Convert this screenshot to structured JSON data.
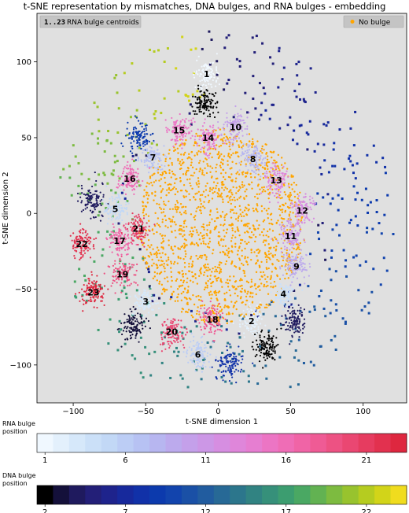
{
  "chart_data": {
    "type": "scatter",
    "title": "t-SNE representation by mismatches, DNA bulges, and RNA bulges - embedding",
    "xlabel": "t-SNE dimension 1",
    "ylabel": "t-SNE dimension 2",
    "xlim": [
      -125,
      130
    ],
    "ylim": [
      -125,
      132
    ],
    "xticks": [
      -100,
      -50,
      0,
      50,
      100
    ],
    "yticks": [
      -100,
      -50,
      0,
      50,
      100
    ],
    "grid": false,
    "plot_background": "#e0e0e0",
    "legend": {
      "placement": "top-right",
      "entries": [
        {
          "label": "No bulge",
          "color": "#ffa500"
        }
      ]
    },
    "centroid_legend": {
      "placement": "top-left",
      "symbol": "1..23",
      "label": "RNA bulge centroids"
    },
    "no_bulge_cloud": {
      "color": "#ffa500",
      "center": [
        2,
        -8
      ],
      "radius": 58
    },
    "rna_bulge_clusters": [
      {
        "label": "1",
        "position": 1,
        "x": -8,
        "y": 92
      },
      {
        "label": "2",
        "position": 2,
        "x": 23,
        "y": -71
      },
      {
        "label": "3",
        "position": 3,
        "x": -50,
        "y": -58
      },
      {
        "label": "4",
        "position": 4,
        "x": 45,
        "y": -53
      },
      {
        "label": "5",
        "position": 5,
        "x": -71,
        "y": 3
      },
      {
        "label": "6",
        "position": 6,
        "x": -14,
        "y": -93
      },
      {
        "label": "7",
        "position": 7,
        "x": -45,
        "y": 37
      },
      {
        "label": "8",
        "position": 8,
        "x": 24,
        "y": 36
      },
      {
        "label": "9",
        "position": 9,
        "x": 54,
        "y": -35
      },
      {
        "label": "10",
        "position": 10,
        "x": 12,
        "y": 57
      },
      {
        "label": "11",
        "position": 11,
        "x": 50,
        "y": -15
      },
      {
        "label": "12",
        "position": 12,
        "x": 58,
        "y": 2
      },
      {
        "label": "13",
        "position": 13,
        "x": 40,
        "y": 22
      },
      {
        "label": "14",
        "position": 14,
        "x": -7,
        "y": 50
      },
      {
        "label": "15",
        "position": 15,
        "x": -27,
        "y": 55
      },
      {
        "label": "16",
        "position": 16,
        "x": -61,
        "y": 23
      },
      {
        "label": "17",
        "position": 17,
        "x": -68,
        "y": -18
      },
      {
        "label": "18",
        "position": 18,
        "x": -4,
        "y": -70
      },
      {
        "label": "19",
        "position": 19,
        "x": -66,
        "y": -40
      },
      {
        "label": "20",
        "position": 20,
        "x": -32,
        "y": -78
      },
      {
        "label": "21",
        "position": 21,
        "x": -55,
        "y": -10
      },
      {
        "label": "22",
        "position": 22,
        "x": -94,
        "y": -20
      },
      {
        "label": "23",
        "position": 23,
        "x": -86,
        "y": -52
      }
    ],
    "dna_bulge_clusters": [
      {
        "position": 2,
        "x": -9,
        "y": 73
      },
      {
        "position": 2,
        "x": 33,
        "y": -88
      },
      {
        "position": 3,
        "x": -58,
        "y": -75
      },
      {
        "position": 4,
        "x": -87,
        "y": 8
      },
      {
        "position": 4,
        "x": 53,
        "y": -71
      },
      {
        "position": 8,
        "x": 8,
        "y": -100
      },
      {
        "position": 9,
        "x": -55,
        "y": 50
      }
    ],
    "colorbars": [
      {
        "name": "RNA bulge position",
        "label_lines": [
          "RNA bulge",
          "position"
        ],
        "min": 1,
        "max": 23,
        "ticks": [
          1,
          6,
          11,
          16,
          21
        ],
        "colors": [
          "#f0f8ff",
          "#e3f0fc",
          "#d6e8fa",
          "#cbe0f8",
          "#c2d8f6",
          "#bccdf5",
          "#b7c2f3",
          "#b7b6f0",
          "#bcaaed",
          "#c4a0ea",
          "#cc97e6",
          "#d68ee1",
          "#df86da",
          "#e67ed1",
          "#ec75c4",
          "#ef6db6",
          "#f064a6",
          "#ef5b95",
          "#ed5283",
          "#ea4772",
          "#e63c60",
          "#e2314f",
          "#de273f"
        ]
      },
      {
        "name": "DNA bulge position",
        "label_lines": [
          "DNA bulge",
          "position"
        ],
        "min": 2,
        "max": 23,
        "ticks": [
          2,
          7,
          12,
          17,
          22
        ],
        "colors": [
          "#000000",
          "#14103a",
          "#1f1a5e",
          "#231f78",
          "#1e238c",
          "#17299c",
          "#1131a8",
          "#0c3aad",
          "#1244ad",
          "#1a50a6",
          "#215c9f",
          "#276996",
          "#2c768c",
          "#318382",
          "#36907a",
          "#3c9d70",
          "#4aa863",
          "#62b252",
          "#7dbb40",
          "#98c32e",
          "#b5cc20",
          "#d2d419",
          "#f0dc1e"
        ]
      }
    ]
  }
}
